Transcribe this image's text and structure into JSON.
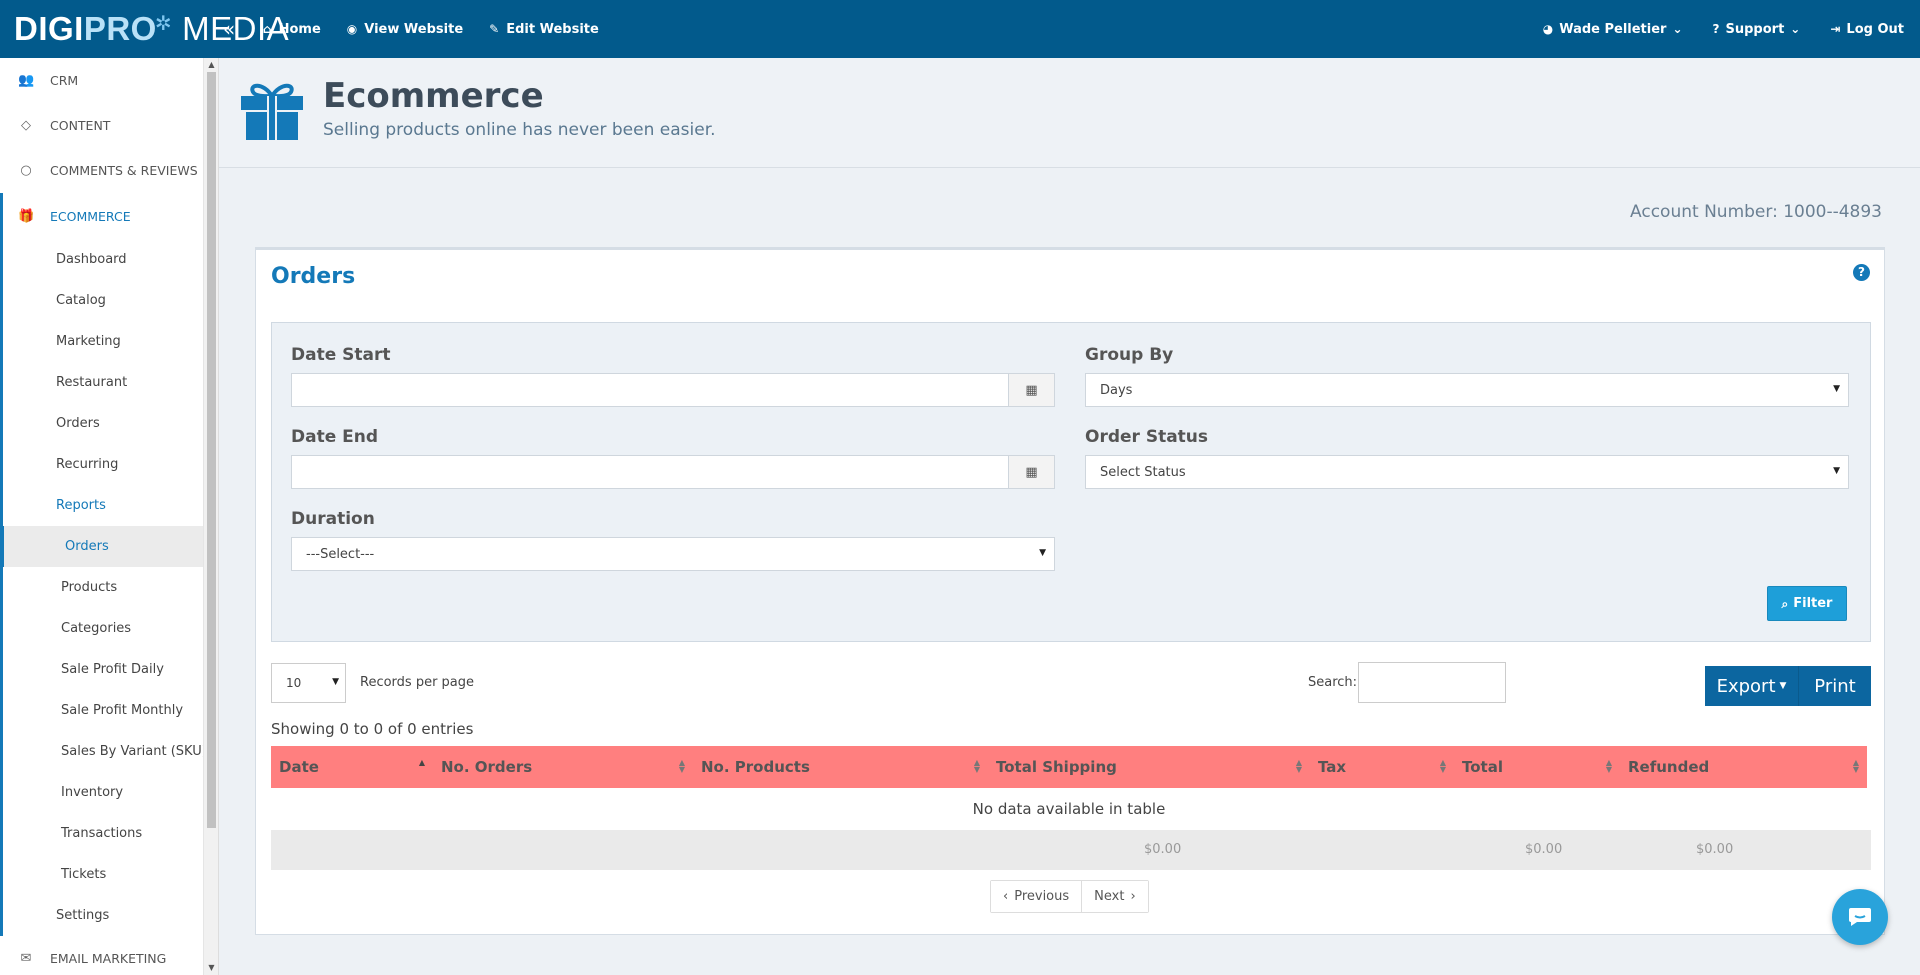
{
  "topbar": {
    "logo": {
      "part1": "DIGI",
      "part2": "PRO",
      "part3": "MEDIA"
    },
    "nav": [
      {
        "label": "Home",
        "icon": "home-icon"
      },
      {
        "label": "View Website",
        "icon": "eye-icon"
      },
      {
        "label": "Edit Website",
        "icon": "edit-icon"
      }
    ],
    "user": "Wade Pelletier",
    "support": "Support",
    "logout": "Log Out"
  },
  "sidebar": {
    "sections": {
      "crm": "CRM",
      "content": "CONTENT",
      "comments": "COMMENTS & REVIEWS",
      "ecommerce": "ECOMMERCE",
      "email": "EMAIL MARKETING"
    },
    "ecommerce_items": {
      "dashboard": "Dashboard",
      "catalog": "Catalog",
      "marketing": "Marketing",
      "restaurant": "Restaurant",
      "orders": "Orders",
      "recurring": "Recurring",
      "reports": "Reports",
      "settings": "Settings"
    },
    "report_items": {
      "orders": "Orders",
      "products": "Products",
      "categories": "Categories",
      "sale_profit_daily": "Sale Profit Daily",
      "sale_profit_monthly": "Sale Profit Monthly",
      "sales_by_variant": "Sales By Variant (SKU)",
      "inventory": "Inventory",
      "transactions": "Transactions",
      "tickets": "Tickets"
    }
  },
  "header": {
    "title": "Ecommerce",
    "subtitle": "Selling products online has never been easier."
  },
  "account": "Account Number: 1000--4893",
  "panel": {
    "title": "Orders",
    "filters": {
      "date_start_label": "Date Start",
      "date_start_value": "",
      "date_end_label": "Date End",
      "date_end_value": "",
      "duration_label": "Duration",
      "duration_value": "---Select---",
      "group_by_label": "Group By",
      "group_by_value": "Days",
      "order_status_label": "Order Status",
      "order_status_value": "Select Status",
      "filter_button": "Filter"
    },
    "records_per_page": "10",
    "records_per_page_label": "Records per page",
    "search_label": "Search:",
    "search_value": "",
    "export_button": "Export",
    "print_button": "Print",
    "showing": "Showing 0 to 0 of 0 entries",
    "table": {
      "columns": [
        "Date",
        "No. Orders",
        "No. Products",
        "Total Shipping",
        "Tax",
        "Total",
        "Refunded"
      ],
      "empty_message": "No data available in table",
      "footer": {
        "total_shipping": "$0.00",
        "total": "$0.00",
        "refunded": "$0.00"
      }
    },
    "pager": {
      "previous": "Previous",
      "next": "Next"
    }
  },
  "colors": {
    "topbar": "#025a8c",
    "accent": "#1479b8",
    "table_header": "#ff7f7f",
    "filter_button": "#1e9fd9",
    "export_button": "#0c66a0"
  }
}
